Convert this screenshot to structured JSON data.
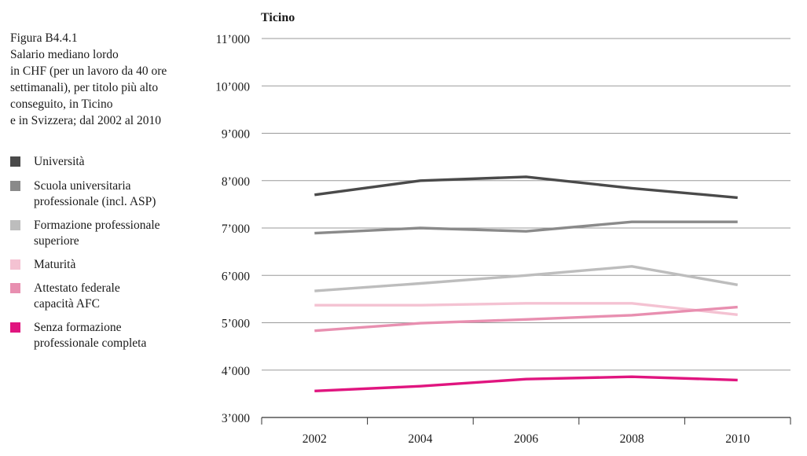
{
  "caption": {
    "lines": [
      "Figura B4.4.1",
      "Salario mediano lordo",
      "in CHF (per un lavoro da 40 ore",
      "settimanali), per titolo più alto",
      "conseguito, in Ticino",
      "e in Svizzera; dal 2002 al 2010"
    ]
  },
  "legend": [
    {
      "lines": [
        "Università"
      ],
      "color": "#4a4a4a"
    },
    {
      "lines": [
        "Scuola universitaria",
        "professionale (incl. ASP)"
      ],
      "color": "#8a8a8a"
    },
    {
      "lines": [
        "Formazione professionale",
        "superiore"
      ],
      "color": "#bdbdbd"
    },
    {
      "lines": [
        "Maturità"
      ],
      "color": "#f4c2d2"
    },
    {
      "lines": [
        "Attestato federale",
        "capacità AFC"
      ],
      "color": "#e88fb0"
    },
    {
      "lines": [
        "Senza formazione",
        "professionale completa"
      ],
      "color": "#e0157f"
    }
  ],
  "chart_data": {
    "type": "line",
    "title": "Ticino",
    "x": [
      2002,
      2004,
      2006,
      2008,
      2010
    ],
    "x_tick_labels": [
      "2002",
      "2004",
      "2006",
      "2008",
      "2010"
    ],
    "ylim": [
      3000,
      11000
    ],
    "y_ticks": [
      3000,
      4000,
      5000,
      6000,
      7000,
      8000,
      9000,
      10000,
      11000
    ],
    "y_tick_labels": [
      "3’000",
      "4’000",
      "5’000",
      "6’000",
      "7’000",
      "8’000",
      "9’000",
      "10’000",
      "11’000"
    ],
    "grid": true,
    "series": [
      {
        "name": "Università",
        "color": "#4a4a4a",
        "values": [
          7700,
          8000,
          8080,
          7840,
          7640
        ]
      },
      {
        "name": "Scuola universitaria professionale (incl. ASP)",
        "color": "#8a8a8a",
        "values": [
          6890,
          7000,
          6930,
          7130,
          7130
        ]
      },
      {
        "name": "Formazione professionale superiore",
        "color": "#bdbdbd",
        "values": [
          5670,
          5830,
          6000,
          6190,
          5800
        ]
      },
      {
        "name": "Maturità",
        "color": "#f4c2d2",
        "values": [
          5370,
          5370,
          5410,
          5410,
          5170
        ]
      },
      {
        "name": "Attestato federale capacità AFC",
        "color": "#e88fb0",
        "values": [
          4830,
          4990,
          5070,
          5160,
          5330
        ]
      },
      {
        "name": "Senza formazione professionale completa",
        "color": "#e0157f",
        "values": [
          3560,
          3660,
          3810,
          3860,
          3790
        ]
      }
    ]
  }
}
